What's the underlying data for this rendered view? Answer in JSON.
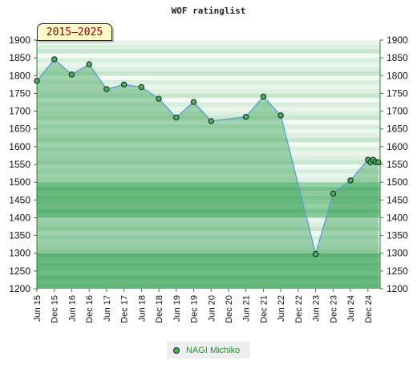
{
  "chart_data": {
    "type": "line",
    "title": "WOF ratinglist",
    "period_label": "2015–2025",
    "x_tick_labels": [
      "Jun 15",
      "Dec 15",
      "Jun 16",
      "Dec 16",
      "Jun 17",
      "Dec 17",
      "Jun 18",
      "Dec 18",
      "Jun 19",
      "Dec 19",
      "Jun 20",
      "Dec 20",
      "Jun 21",
      "Dec 21",
      "Jun 22",
      "Dec 22",
      "Jun 23",
      "Dec 23",
      "Jun 24",
      "Dec 24"
    ],
    "y_ticks": [
      1200,
      1250,
      1300,
      1350,
      1400,
      1450,
      1500,
      1550,
      1600,
      1650,
      1700,
      1750,
      1800,
      1850,
      1900
    ],
    "ylim": [
      1200,
      1900
    ],
    "xlim": [
      0,
      19.7
    ],
    "grid": true,
    "series": [
      {
        "name": "NAGI Michiko",
        "color": "#4caf50",
        "line_color": "#5b9bd5",
        "points": [
          {
            "x": 0.0,
            "y": 1785
          },
          {
            "x": 1.0,
            "y": 1846
          },
          {
            "x": 2.0,
            "y": 1803
          },
          {
            "x": 3.0,
            "y": 1832
          },
          {
            "x": 4.0,
            "y": 1762
          },
          {
            "x": 5.0,
            "y": 1775
          },
          {
            "x": 6.0,
            "y": 1768
          },
          {
            "x": 7.0,
            "y": 1735
          },
          {
            "x": 8.0,
            "y": 1682
          },
          {
            "x": 9.0,
            "y": 1726
          },
          {
            "x": 10.0,
            "y": 1672
          },
          {
            "x": 12.0,
            "y": 1684
          },
          {
            "x": 13.0,
            "y": 1741
          },
          {
            "x": 14.0,
            "y": 1688
          },
          {
            "x": 16.0,
            "y": 1298
          },
          {
            "x": 17.0,
            "y": 1468
          },
          {
            "x": 18.0,
            "y": 1505
          },
          {
            "x": 19.0,
            "y": 1563
          },
          {
            "x": 19.15,
            "y": 1556
          },
          {
            "x": 19.3,
            "y": 1563
          },
          {
            "x": 19.45,
            "y": 1557
          },
          {
            "x": 19.6,
            "y": 1556
          }
        ]
      }
    ]
  }
}
